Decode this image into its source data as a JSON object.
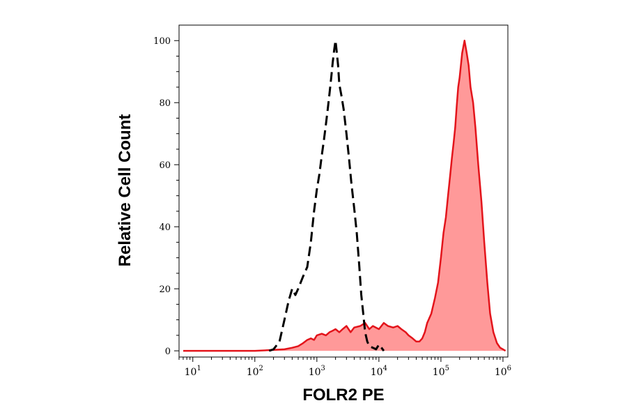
{
  "chart_data": {
    "type": "area",
    "xlabel": "FOLR2 PE",
    "ylabel": "Relative Cell Count",
    "xscale": "log",
    "xlim": [
      6,
      1200000
    ],
    "ylim": [
      -2,
      105
    ],
    "x_ticks": [
      {
        "value": 10,
        "base": "10",
        "exp": "1"
      },
      {
        "value": 100,
        "base": "10",
        "exp": "2"
      },
      {
        "value": 1000,
        "base": "10",
        "exp": "3"
      },
      {
        "value": 10000,
        "base": "10",
        "exp": "4"
      },
      {
        "value": 100000,
        "base": "10",
        "exp": "5"
      },
      {
        "value": 1000000,
        "base": "10",
        "exp": "6"
      }
    ],
    "y_ticks": [
      "0",
      "20",
      "40",
      "60",
      "80",
      "100"
    ],
    "grid": false,
    "legend": "none",
    "series": [
      {
        "style": "dashed",
        "line_color": "#000000",
        "fill_color": "none",
        "x": [
          170,
          200,
          250,
          300,
          350,
          400,
          450,
          500,
          600,
          700,
          800,
          900,
          1000,
          1100,
          1200,
          1300,
          1400,
          1500,
          1600,
          1700,
          1800,
          1900,
          2000,
          2100,
          2200,
          2300,
          2500,
          2700,
          3000,
          3300,
          3600,
          4000,
          4400,
          4800,
          5200,
          5600,
          6000,
          6500,
          7000,
          8000,
          9000,
          10000,
          11000,
          12000
        ],
        "y": [
          0,
          0.5,
          3,
          10,
          16,
          20,
          18,
          20,
          24,
          27,
          35,
          45,
          52,
          57,
          63,
          68,
          73,
          78,
          83,
          88,
          93,
          97,
          100,
          96,
          92,
          86,
          82,
          78,
          70,
          62,
          54,
          46,
          38,
          28,
          18,
          12,
          6,
          3,
          1.5,
          1,
          0.5,
          2,
          1,
          0
        ]
      },
      {
        "style": "solid",
        "line_color": "#e3141b",
        "fill_color": "#ff9999",
        "x": [
          7,
          10,
          30,
          100,
          200,
          300,
          400,
          500,
          600,
          700,
          800,
          900,
          1000,
          1200,
          1400,
          1600,
          1800,
          2000,
          2300,
          2600,
          3000,
          3500,
          4000,
          5000,
          6000,
          7000,
          8000,
          10000,
          12000,
          14000,
          17000,
          20000,
          23000,
          27000,
          30000,
          35000,
          40000,
          45000,
          50000,
          55000,
          60000,
          70000,
          80000,
          90000,
          100000,
          110000,
          120000,
          130000,
          140000,
          150000,
          160000,
          170000,
          180000,
          190000,
          200000,
          220000,
          240000,
          260000,
          280000,
          300000,
          330000,
          360000,
          400000,
          450000,
          500000,
          560000,
          620000,
          700000,
          800000,
          900000,
          1000000,
          1100000
        ],
        "y": [
          0,
          0,
          0,
          0,
          0.3,
          0.5,
          1,
          1.5,
          2.5,
          3.5,
          4,
          3.5,
          5,
          5.5,
          5,
          6,
          6.5,
          7,
          6,
          7,
          8,
          6,
          7.5,
          8,
          9,
          7,
          8,
          7,
          9,
          8,
          7.5,
          8,
          7,
          6,
          5,
          4,
          3,
          3,
          4,
          6,
          9,
          12,
          17,
          22,
          30,
          38,
          43,
          50,
          56,
          62,
          67,
          72,
          79,
          85,
          88,
          96,
          100,
          96,
          92,
          85,
          80,
          72,
          60,
          48,
          35,
          22,
          12,
          6,
          2.5,
          1,
          0.5,
          0
        ]
      }
    ]
  }
}
